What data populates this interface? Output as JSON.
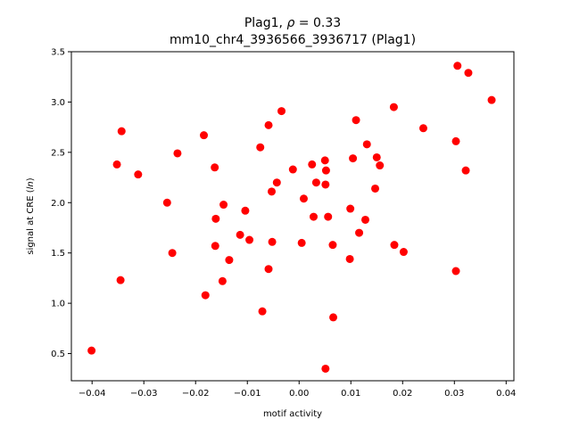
{
  "chart_data": {
    "type": "scatter",
    "title_prefix": "Plag1, ",
    "title_symbol": "ρ",
    "title_suffix": " = 0.33",
    "subtitle": "mm10_chr4_3936566_3936717 (Plag1)",
    "xlabel": "motif activity",
    "ylabel_prefix": "signal at CRE (",
    "ylabel_italic": "ln",
    "ylabel_suffix": ")",
    "xlim": [
      -0.044,
      0.0415
    ],
    "ylim": [
      0.23,
      3.5
    ],
    "grid": false,
    "marker_color": "#ff0000",
    "x_ticks": [
      -0.04,
      -0.03,
      -0.02,
      -0.01,
      0.0,
      0.01,
      0.02,
      0.03,
      0.04
    ],
    "x_tick_labels": [
      "−0.04",
      "−0.03",
      "−0.02",
      "−0.01",
      "0.00",
      "0.01",
      "0.02",
      "0.03",
      "0.04"
    ],
    "y_ticks": [
      0.5,
      1.0,
      1.5,
      2.0,
      2.5,
      3.0,
      3.5
    ],
    "y_tick_labels": [
      "0.5",
      "1.0",
      "1.5",
      "2.0",
      "2.5",
      "3.0",
      "3.5"
    ],
    "points": [
      {
        "x": -0.0401,
        "y": 0.53
      },
      {
        "x": -0.0352,
        "y": 2.38
      },
      {
        "x": -0.0343,
        "y": 2.71
      },
      {
        "x": -0.0345,
        "y": 1.23
      },
      {
        "x": -0.0311,
        "y": 2.28
      },
      {
        "x": -0.0255,
        "y": 2.0
      },
      {
        "x": -0.0245,
        "y": 1.5
      },
      {
        "x": -0.0235,
        "y": 2.49
      },
      {
        "x": -0.0184,
        "y": 2.67
      },
      {
        "x": -0.0181,
        "y": 1.08
      },
      {
        "x": -0.0163,
        "y": 2.35
      },
      {
        "x": -0.0161,
        "y": 1.84
      },
      {
        "x": -0.0162,
        "y": 1.57
      },
      {
        "x": -0.0146,
        "y": 1.98
      },
      {
        "x": -0.0148,
        "y": 1.22
      },
      {
        "x": -0.0135,
        "y": 1.43
      },
      {
        "x": -0.0114,
        "y": 1.68
      },
      {
        "x": -0.0104,
        "y": 1.92
      },
      {
        "x": -0.0096,
        "y": 1.63
      },
      {
        "x": -0.0075,
        "y": 2.55
      },
      {
        "x": -0.0071,
        "y": 0.92
      },
      {
        "x": -0.0059,
        "y": 2.77
      },
      {
        "x": -0.0059,
        "y": 1.34
      },
      {
        "x": -0.0053,
        "y": 2.11
      },
      {
        "x": -0.0052,
        "y": 1.61
      },
      {
        "x": -0.0043,
        "y": 2.2
      },
      {
        "x": -0.0034,
        "y": 2.91
      },
      {
        "x": -0.0012,
        "y": 2.33
      },
      {
        "x": 0.0005,
        "y": 1.6
      },
      {
        "x": 0.0009,
        "y": 2.04
      },
      {
        "x": 0.0025,
        "y": 2.38
      },
      {
        "x": 0.0028,
        "y": 1.86
      },
      {
        "x": 0.0033,
        "y": 2.2
      },
      {
        "x": 0.005,
        "y": 2.42
      },
      {
        "x": 0.0051,
        "y": 2.18
      },
      {
        "x": 0.0052,
        "y": 2.32
      },
      {
        "x": 0.0051,
        "y": 0.35
      },
      {
        "x": 0.0056,
        "y": 1.86
      },
      {
        "x": 0.0065,
        "y": 1.58
      },
      {
        "x": 0.0066,
        "y": 0.86
      },
      {
        "x": 0.0099,
        "y": 1.94
      },
      {
        "x": 0.0098,
        "y": 1.44
      },
      {
        "x": 0.0104,
        "y": 2.44
      },
      {
        "x": 0.011,
        "y": 2.82
      },
      {
        "x": 0.0116,
        "y": 1.7
      },
      {
        "x": 0.0128,
        "y": 1.83
      },
      {
        "x": 0.0131,
        "y": 2.58
      },
      {
        "x": 0.0147,
        "y": 2.14
      },
      {
        "x": 0.015,
        "y": 2.45
      },
      {
        "x": 0.0156,
        "y": 2.37
      },
      {
        "x": 0.0183,
        "y": 2.95
      },
      {
        "x": 0.0184,
        "y": 1.58
      },
      {
        "x": 0.0202,
        "y": 1.51
      },
      {
        "x": 0.024,
        "y": 2.74
      },
      {
        "x": 0.0303,
        "y": 2.61
      },
      {
        "x": 0.0303,
        "y": 1.32
      },
      {
        "x": 0.0306,
        "y": 3.36
      },
      {
        "x": 0.0322,
        "y": 2.32
      },
      {
        "x": 0.0327,
        "y": 3.29
      },
      {
        "x": 0.0372,
        "y": 3.02
      }
    ]
  }
}
